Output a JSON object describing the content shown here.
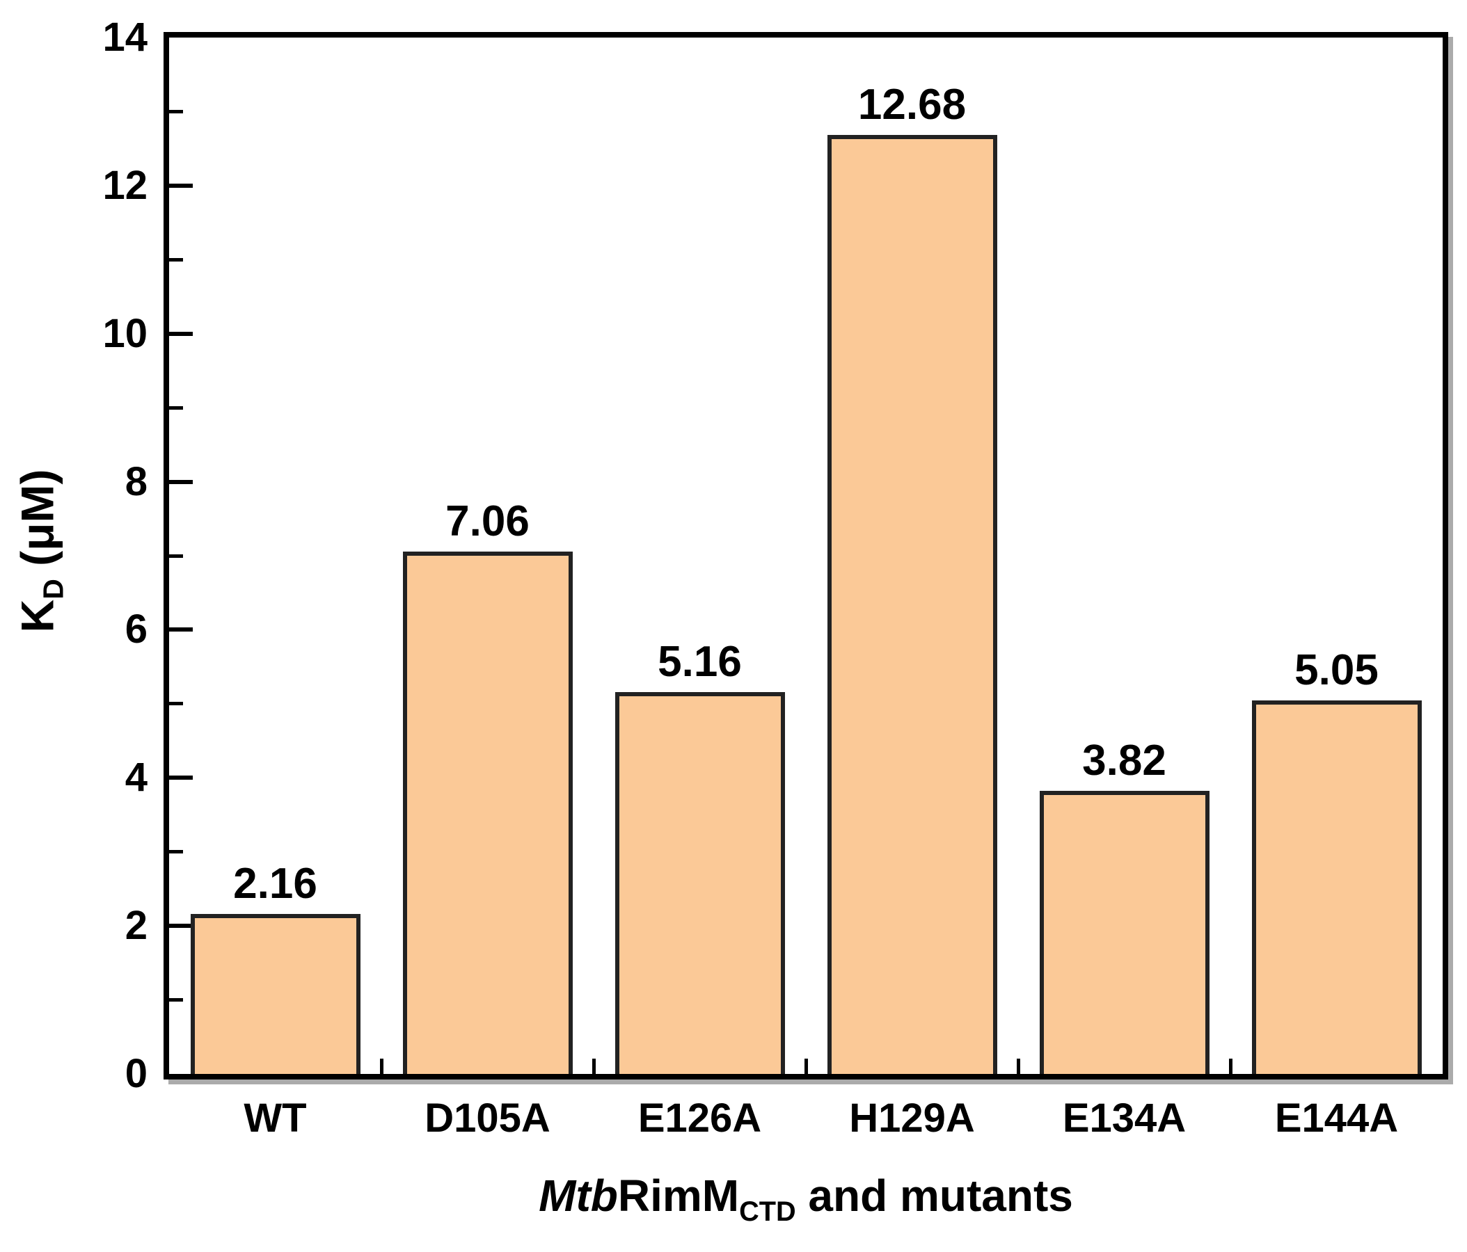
{
  "chart_data": {
    "type": "bar",
    "title": "",
    "categories": [
      "WT",
      "D105A",
      "E126A",
      "H129A",
      "E134A",
      "E144A"
    ],
    "values": [
      2.16,
      7.06,
      5.16,
      12.68,
      3.82,
      5.05
    ],
    "bar_value_labels": [
      "2.16",
      "7.06",
      "5.16",
      "12.68",
      "3.82",
      "5.05"
    ],
    "xlabel": "MtbRimMCTD and mutants",
    "xlabel_rich": {
      "italic_prefix": "Mtb",
      "main": "RimM",
      "subscript": "CTD",
      "suffix": " and mutants"
    },
    "ylabel": "KD (μM)",
    "ylabel_rich": {
      "main": "K",
      "subscript": "D",
      "suffix": " (μM)"
    },
    "ylim": [
      0,
      14
    ],
    "ytick_major_values": [
      0,
      2,
      4,
      6,
      8,
      10,
      12,
      14
    ],
    "ytick_labels": [
      "0",
      "2",
      "4",
      "6",
      "8",
      "10",
      "12",
      "14"
    ],
    "ytick_minor_values": [
      1,
      3,
      5,
      7,
      9,
      11,
      13
    ],
    "grid": false,
    "legend_position": "none",
    "colors": {
      "bar_fill": "#FBC997",
      "bar_border": "#222222",
      "axis": "#000000",
      "text": "#000000"
    }
  }
}
